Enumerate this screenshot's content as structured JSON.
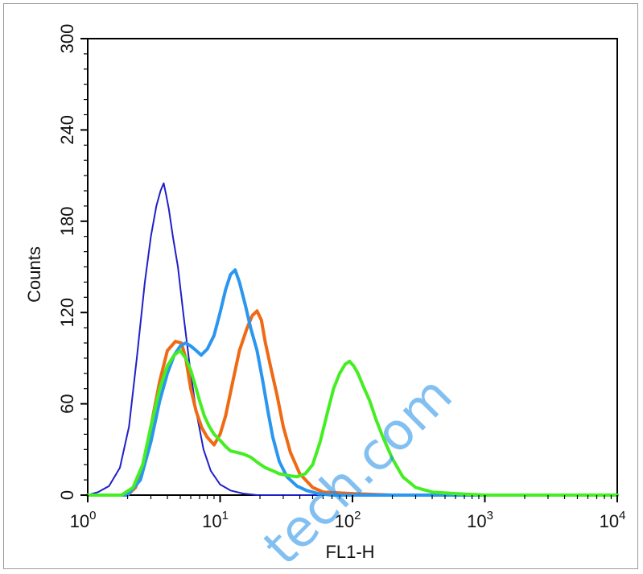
{
  "chart_data": {
    "type": "line",
    "xlabel": "FL1-H",
    "ylabel": "Counts",
    "xscale": "log",
    "xlim": [
      1,
      10000
    ],
    "ylim": [
      0,
      300
    ],
    "yticks": [
      0,
      60,
      120,
      180,
      240,
      300
    ],
    "xticks": [
      {
        "value": 1,
        "base": "10",
        "exp": "0"
      },
      {
        "value": 10,
        "base": "10",
        "exp": "1"
      },
      {
        "value": 100,
        "base": "10",
        "exp": "2"
      },
      {
        "value": 1000,
        "base": "10",
        "exp": "3"
      },
      {
        "value": 10000,
        "base": "10",
        "exp": "4"
      }
    ],
    "series": [
      {
        "color": "#2020c8",
        "width": 2,
        "x": [
          1.0,
          1.2,
          1.45,
          1.75,
          2.05,
          2.35,
          2.7,
          3.0,
          3.3,
          3.55,
          3.75,
          3.9,
          4.1,
          4.4,
          4.8,
          5.3,
          5.9,
          6.6,
          7.5,
          8.5,
          10,
          12,
          15,
          19,
          25,
          40,
          100,
          10000
        ],
        "y": [
          0,
          2,
          6,
          18,
          45,
          90,
          140,
          170,
          190,
          200,
          205,
          198,
          188,
          170,
          150,
          118,
          85,
          55,
          30,
          16,
          7,
          3,
          1,
          0,
          0,
          0,
          0,
          0
        ]
      },
      {
        "color": "#ee6a14",
        "width": 4,
        "x": [
          1.0,
          2.0,
          2.3,
          2.6,
          3.0,
          3.5,
          4.0,
          4.6,
          5.1,
          5.5,
          6.0,
          6.6,
          7.3,
          8.0,
          9.0,
          10.0,
          11.0,
          12.5,
          14.0,
          16.0,
          17.5,
          19.0,
          20.5,
          22.0,
          24.0,
          27.0,
          30.0,
          34.0,
          40.0,
          50.0,
          60.0,
          100.0,
          200.0,
          400.0,
          10000.0
        ],
        "y": [
          0,
          0,
          5,
          18,
          45,
          75,
          95,
          101,
          100,
          90,
          70,
          55,
          44,
          38,
          33,
          40,
          52,
          75,
          95,
          110,
          118,
          121,
          115,
          100,
          85,
          65,
          45,
          28,
          14,
          5,
          2,
          1,
          0,
          0,
          0
        ]
      },
      {
        "color": "#2a96f0",
        "width": 4,
        "x": [
          1.0,
          2.0,
          2.5,
          3.0,
          3.5,
          4.0,
          4.5,
          5.0,
          5.5,
          6.0,
          6.6,
          7.2,
          8.0,
          9.0,
          10.0,
          11.0,
          12.0,
          13.0,
          14.0,
          15.5,
          17.0,
          19.0,
          21.0,
          23.0,
          25.0,
          28.0,
          32.0,
          38.0,
          45.0,
          55.0,
          70.0,
          100.0,
          10000.0
        ],
        "y": [
          0,
          0,
          10,
          35,
          62,
          80,
          92,
          98,
          100,
          98,
          95,
          92,
          96,
          105,
          120,
          135,
          145,
          148,
          140,
          125,
          110,
          95,
          75,
          55,
          38,
          22,
          12,
          6,
          3,
          1,
          0,
          0,
          0
        ]
      },
      {
        "color": "#44ee22",
        "width": 4,
        "x": [
          1.0,
          1.8,
          2.2,
          2.6,
          3.0,
          3.5,
          4.0,
          4.5,
          5.0,
          5.5,
          6.0,
          6.5,
          7.0,
          7.6,
          8.3,
          9.0,
          10.0,
          11.0,
          12.0,
          13.5,
          15.0,
          17.0,
          19.5,
          22.0,
          25.0,
          28.0,
          32.0,
          38.0,
          44.0,
          50.0,
          57.0,
          65.0,
          72.0,
          80.0,
          88.0,
          95.0,
          102.0,
          110.0,
          120.0,
          135.0,
          150.0,
          170.0,
          200.0,
          240.0,
          300.0,
          400.0,
          600.0,
          1000.0,
          10000.0
        ],
        "y": [
          0,
          0,
          5,
          20,
          45,
          70,
          85,
          92,
          95,
          90,
          82,
          72,
          62,
          52,
          45,
          40,
          36,
          32,
          29,
          28,
          27,
          25,
          21,
          18,
          16,
          14,
          13,
          12,
          14,
          20,
          35,
          55,
          70,
          80,
          86,
          88,
          85,
          80,
          72,
          62,
          50,
          38,
          24,
          12,
          5,
          2,
          1,
          0,
          0
        ]
      }
    ]
  },
  "watermark": "tech.com"
}
